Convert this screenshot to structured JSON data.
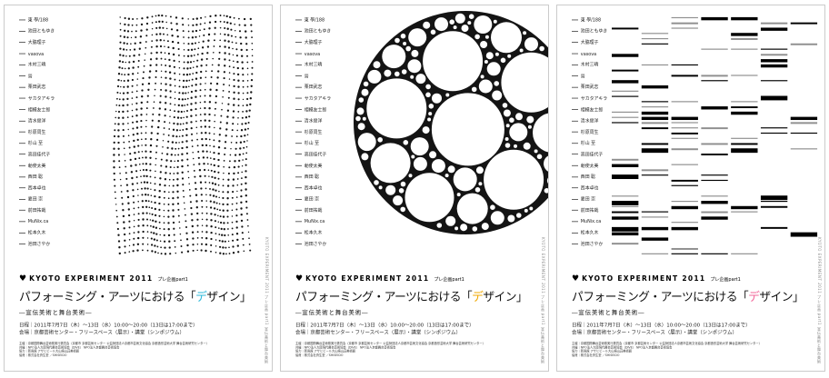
{
  "brand": {
    "logo_icon": "heart-logo",
    "logo_text": "KYOTO EXPERIMENT 2011",
    "logo_suffix": "プレ企画part1"
  },
  "title": {
    "pre": "パフォーミング・アーツにおける「",
    "accent_char": "デ",
    "post": "ザイン」",
    "subtitle": "―宣伝美術と舞台美術―"
  },
  "details": {
    "schedule": "日程｜2011年7月7日（木）〜13日（水）10:00〜20:00（13日は17:00まで）",
    "venue": "会場｜京都芸術センター・フリースペース（展示）・講堂（シンポジウム）"
  },
  "credits": [
    "主催｜京都国際舞台芸術祭実行委員会（京都市 京都芸術センター 公益財団法人京都市芸術文化協会 京都造形芸術大学 舞台芸術研究センター）",
    "共催｜NPO法人大阪現代舞台芸術協会（DIVE） NPO法人京都舞台芸術協会",
    "協力｜新風館 アサヒビール大山崎山荘美術館",
    "協賛｜株式会社資生堂 ／SHISEIDO"
  ],
  "side_credit": "KYOTO EXPERIMENT 2011 プレ企画 part1 宣伝美術と舞台美術",
  "names": [
    "東 學/188",
    "池田ともゆき",
    "大脇理子",
    "vasova",
    "木村三晴",
    "晉",
    "栗田武志",
    "サカタアキラ",
    "相模友士郎",
    "清水俊洋",
    "杉原周生",
    "杉山 至",
    "高田佳代子",
    "勅使太美",
    "西田 聡",
    "西本卓也",
    "夏田 崇",
    "前田祐哉",
    "MuNix.ca",
    "松本久木",
    "池田さやか"
  ],
  "posters": [
    {
      "name": "dots-poster",
      "art": "warped-dot-grid",
      "accent": "#2bb8d9"
    },
    {
      "name": "bubbles-poster",
      "art": "circle-packing",
      "accent": "#f0a800"
    },
    {
      "name": "bars-poster",
      "art": "bar-code-rows",
      "accent": "#f2679a"
    }
  ],
  "art_colors": {
    "ink": "#141414",
    "bar_gray": "#8f8f8f",
    "paper": "#ffffff"
  }
}
